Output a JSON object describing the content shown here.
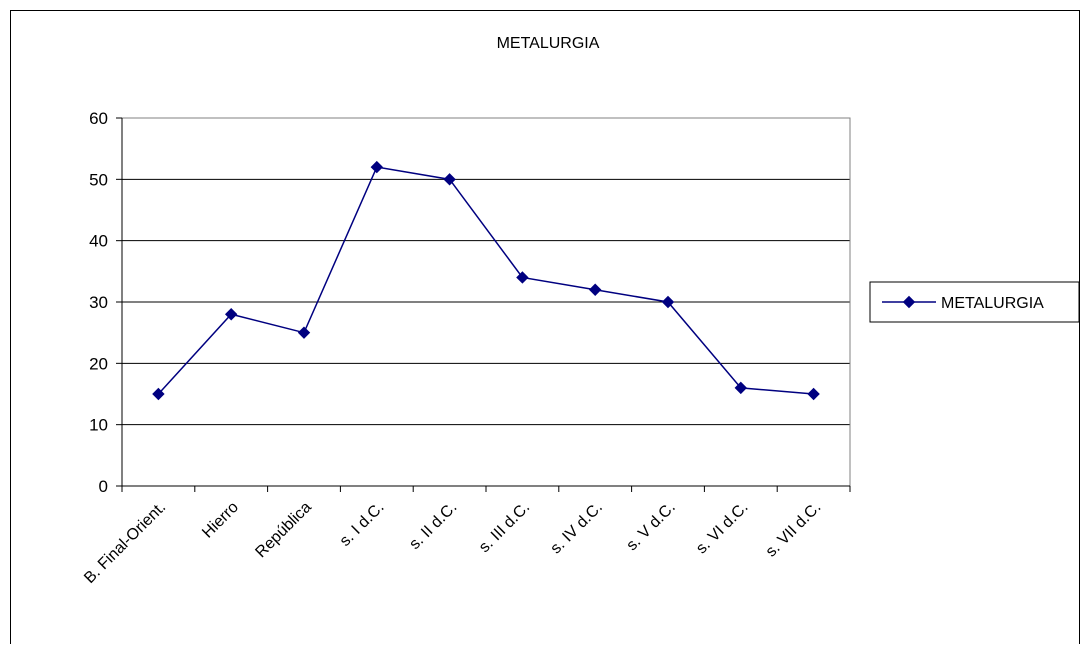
{
  "chart_data": {
    "type": "line",
    "title": "METALURGIA",
    "xlabel": "",
    "ylabel": "",
    "categories": [
      "B. Final-Orient.",
      "Hierro",
      "República",
      "s. I d.C.",
      "s. II d.C.",
      "s. III d.C.",
      "s. IV d.C.",
      "s. V d.C.",
      "s. VI d.C.",
      "s. VII d.C."
    ],
    "series": [
      {
        "name": "METALURGIA",
        "values": [
          15,
          28,
          25,
          52,
          50,
          34,
          32,
          30,
          16,
          15
        ]
      }
    ],
    "ylim": [
      0,
      60
    ],
    "yticks": [
      "0",
      "10",
      "20",
      "30",
      "40",
      "50",
      "60"
    ],
    "grid": true,
    "legend": "right",
    "colors": {
      "series": "#000080",
      "grid": "#000000",
      "plot_border": "#808080"
    }
  }
}
